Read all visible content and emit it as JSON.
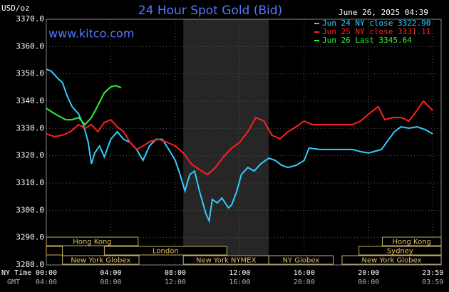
{
  "chart_data": {
    "type": "line",
    "title": "24 Hour Spot Gold (Bid)",
    "y_axis_label": "USD/oz",
    "date_stamp": "June 26, 2025 04:39",
    "watermark": "www.kitco.com",
    "x_axis_labels": [
      "NY Time",
      "GMT"
    ],
    "ylim": [
      3280,
      3370
    ],
    "yticks": [
      {
        "value": 3280,
        "label": "3280.0"
      },
      {
        "value": 3290,
        "label": "3290.0"
      },
      {
        "value": 3300,
        "label": "3300.0"
      },
      {
        "value": 3310,
        "label": "3310.0"
      },
      {
        "value": 3320,
        "label": "3320.0"
      },
      {
        "value": 3330,
        "label": "3330.0"
      },
      {
        "value": 3340,
        "label": "3340.0"
      },
      {
        "value": 3350,
        "label": "3350.0"
      },
      {
        "value": 3360,
        "label": "3360.0"
      },
      {
        "value": 3370,
        "label": "3370.0"
      }
    ],
    "xlim": [
      0,
      24.5
    ],
    "xticks": [
      {
        "value": 0,
        "label": "00:00"
      },
      {
        "value": 4,
        "label": "04:00"
      },
      {
        "value": 8,
        "label": "08:00"
      },
      {
        "value": 12,
        "label": "12:00"
      },
      {
        "value": 16,
        "label": "16:00"
      },
      {
        "value": 20,
        "label": "20:00"
      },
      {
        "value": 23.98,
        "label": "23:59"
      }
    ],
    "gmt_labels": [
      "04:00",
      "08:00",
      "12:00",
      "16:00",
      "20:00",
      "00:00",
      "03:59"
    ],
    "grid": true,
    "shade": [
      8.5,
      13.8
    ],
    "sessions": [
      [
        {
          "label": "Hong Kong",
          "start": 0,
          "end": 5.7
        },
        {
          "label": "Hong Kong",
          "start": 20.85,
          "end": 24.5
        }
      ],
      [
        {
          "label": null,
          "start": 0,
          "end": 1.0
        },
        {
          "label": "London",
          "start": 3.6,
          "end": 11.2
        },
        {
          "label": "Sydney",
          "start": 19.4,
          "end": 24.5
        }
      ],
      [
        {
          "label": "New York Globex",
          "start": 1.0,
          "end": 5.75
        },
        {
          "label": "New York NYMEX",
          "start": 8.5,
          "end": 13.8
        },
        {
          "label": "NY Globex",
          "start": 13.8,
          "end": 17.8
        },
        {
          "label": "New York Globex",
          "start": 18.35,
          "end": 24.5
        }
      ]
    ],
    "series": [
      {
        "name": "Jun 24 NY close 3322.90",
        "color": "#33ccff",
        "x": [
          0,
          0.3,
          0.7,
          1.0,
          1.3,
          1.6,
          2.0,
          2.3,
          2.6,
          2.8,
          3.0,
          3.3,
          3.6,
          4.0,
          4.4,
          4.8,
          5.2,
          5.6,
          6.0,
          6.4,
          6.8,
          7.2,
          7.6,
          8.0,
          8.3,
          8.6,
          8.9,
          9.2,
          9.5,
          9.9,
          10.1,
          10.3,
          10.6,
          10.9,
          11.3,
          11.5,
          11.8,
          12.1,
          12.5,
          12.9,
          13.3,
          13.8,
          14.2,
          14.6,
          15.0,
          15.5,
          16.0,
          16.3,
          17.0,
          18.0,
          19.0,
          19.5,
          20.0,
          20.8,
          21.2,
          21.6,
          22.0,
          22.5,
          23.0,
          23.5,
          23.98
        ],
        "values": [
          3351.7,
          3351.0,
          3348.4,
          3346.8,
          3341.8,
          3338.0,
          3335.3,
          3331.4,
          3324.9,
          3317.0,
          3321.0,
          3323.6,
          3319.6,
          3326.0,
          3328.8,
          3326.0,
          3324.9,
          3322.3,
          3318.3,
          3323.6,
          3326.0,
          3326.0,
          3322.3,
          3318.3,
          3313.1,
          3307.1,
          3313.1,
          3314.4,
          3307.1,
          3298.8,
          3296.2,
          3304.0,
          3302.7,
          3304.5,
          3300.9,
          3302.0,
          3306.6,
          3313.1,
          3315.7,
          3314.4,
          3317.0,
          3319.1,
          3318.3,
          3316.5,
          3315.7,
          3316.5,
          3318.3,
          3322.8,
          3322.3,
          3322.3,
          3322.3,
          3321.5,
          3321.0,
          3322.3,
          3325.6,
          3328.8,
          3330.6,
          3330.1,
          3330.6,
          3329.6,
          3328.0
        ]
      },
      {
        "name": "Jun 25 NY close 3331.11",
        "color": "#ff2020",
        "x": [
          0,
          0.5,
          1.0,
          1.5,
          2.0,
          2.4,
          2.8,
          3.2,
          3.6,
          4.0,
          4.4,
          4.8,
          5.2,
          5.6,
          6.0,
          6.5,
          7.0,
          7.5,
          8.0,
          8.5,
          9.0,
          9.5,
          10.0,
          10.5,
          11.0,
          11.5,
          12.0,
          12.5,
          13.0,
          13.5,
          14.0,
          14.5,
          15.0,
          15.5,
          16.0,
          16.5,
          17.0,
          18.0,
          19.0,
          19.5,
          20.0,
          20.6,
          21.0,
          21.5,
          22.0,
          22.5,
          23.0,
          23.4,
          23.98
        ],
        "values": [
          3328.0,
          3327.0,
          3327.5,
          3328.8,
          3331.4,
          3330.1,
          3331.4,
          3328.8,
          3332.2,
          3333.2,
          3330.6,
          3328.8,
          3324.9,
          3322.3,
          3323.6,
          3325.4,
          3326.0,
          3324.9,
          3323.6,
          3321.0,
          3317.0,
          3314.9,
          3313.1,
          3315.7,
          3319.6,
          3322.8,
          3324.9,
          3328.8,
          3334.0,
          3332.7,
          3327.5,
          3326.2,
          3328.8,
          3330.6,
          3332.7,
          3331.4,
          3331.4,
          3331.4,
          3331.4,
          3332.7,
          3335.3,
          3338.0,
          3333.2,
          3334.0,
          3334.0,
          3332.7,
          3336.6,
          3340.0,
          3336.6
        ]
      },
      {
        "name": "Jun 26 Last 3345.64",
        "color": "#33ee33",
        "x": [
          0,
          0.4,
          0.8,
          1.2,
          1.6,
          2.0,
          2.4,
          2.8,
          3.2,
          3.6,
          4.0,
          4.3,
          4.65
        ],
        "values": [
          3337.4,
          3335.8,
          3334.5,
          3333.2,
          3333.2,
          3334.0,
          3331.4,
          3334.0,
          3338.4,
          3343.1,
          3345.2,
          3345.7,
          3344.9
        ]
      }
    ]
  }
}
